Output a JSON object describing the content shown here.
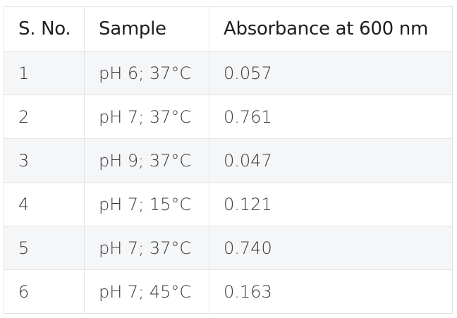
{
  "table": {
    "headers": [
      "S. No.",
      "Sample",
      "Absorbance at 600 nm"
    ],
    "rows": [
      [
        "1",
        "pH 6; 37°C",
        "0.057"
      ],
      [
        "2",
        "pH 7; 37°C",
        "0.761"
      ],
      [
        "3",
        "pH 9; 37°C",
        "0.047"
      ],
      [
        "4",
        "pH 7; 15°C",
        "0.121"
      ],
      [
        "5",
        "pH 7; 37°C",
        "0.740"
      ],
      [
        "6",
        "pH 7; 45°C",
        "0.163"
      ]
    ]
  },
  "colors": {
    "stripe": "#f5f6f8",
    "border": "#e3e3e3"
  }
}
